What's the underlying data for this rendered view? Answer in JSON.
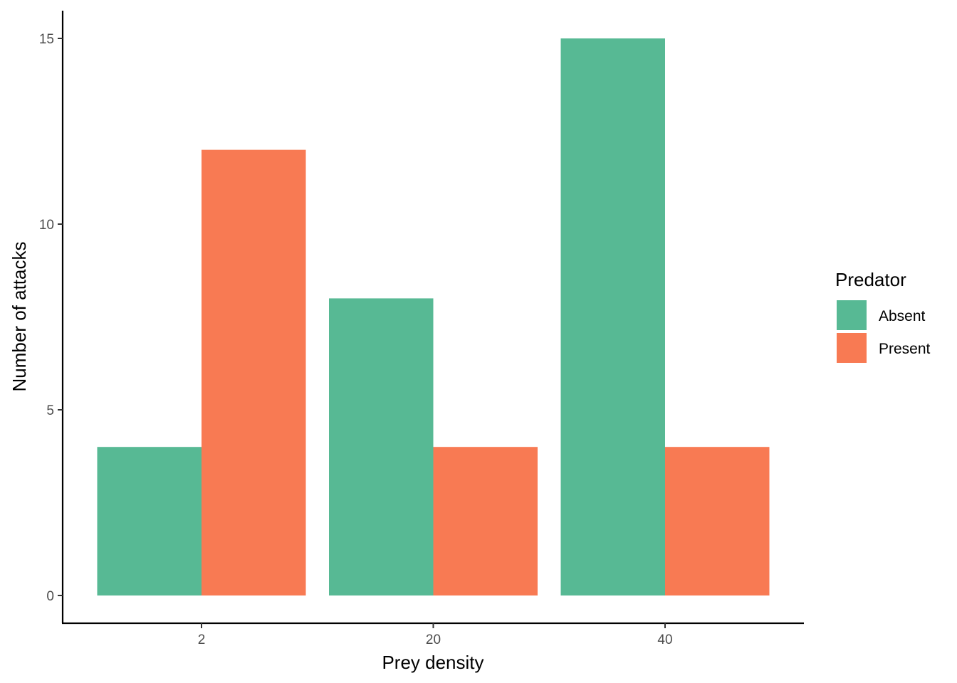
{
  "chart_data": {
    "type": "bar",
    "categories": [
      "2",
      "20",
      "40"
    ],
    "series": [
      {
        "name": "Absent",
        "values": [
          4,
          8,
          15
        ],
        "color": "#57b994"
      },
      {
        "name": "Present",
        "values": [
          12,
          4,
          4
        ],
        "color": "#f87a53"
      }
    ],
    "xlabel": "Prey density",
    "ylabel": "Number of attacks",
    "ylim": [
      0,
      15
    ],
    "yticks": [
      "0",
      "5",
      "10",
      "15"
    ],
    "grid": false,
    "legend": {
      "title": "Predator",
      "placement": "right"
    }
  }
}
